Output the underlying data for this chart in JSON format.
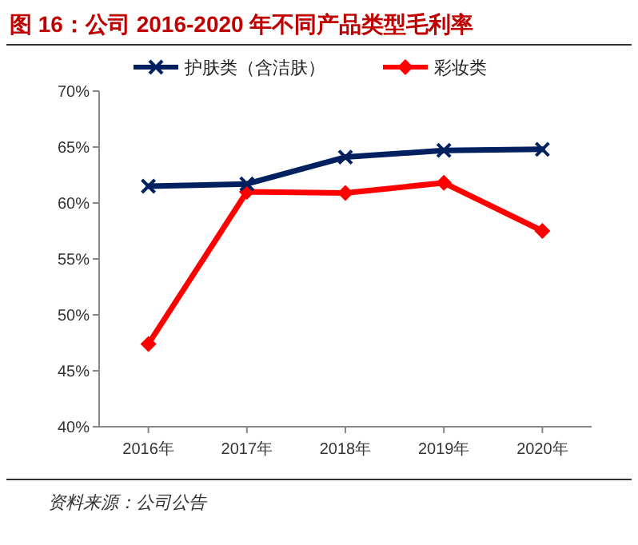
{
  "chart_data": {
    "type": "line",
    "title": "图 16：公司 2016-2020 年不同产品类型毛利率",
    "categories": [
      "2016年",
      "2017年",
      "2018年",
      "2019年",
      "2020年"
    ],
    "series": [
      {
        "name": "护肤类（含洁肤）",
        "color": "#002060",
        "values": [
          61.5,
          61.7,
          64.1,
          64.7,
          64.8
        ],
        "marker": "cross"
      },
      {
        "name": "彩妆类",
        "color": "#ff0000",
        "values": [
          47.4,
          61.0,
          60.9,
          61.8,
          57.5
        ],
        "marker": "diamond"
      }
    ],
    "ylim": [
      40,
      70
    ],
    "yticks": [
      {
        "value": 40,
        "label": "40%"
      },
      {
        "value": 45,
        "label": "45%"
      },
      {
        "value": 50,
        "label": "50%"
      },
      {
        "value": 55,
        "label": "55%"
      },
      {
        "value": 60,
        "label": "60%"
      },
      {
        "value": 65,
        "label": "65%"
      },
      {
        "value": 70,
        "label": "70%"
      }
    ],
    "legend": "top",
    "annotations": [
      "资料来源：公司公告"
    ]
  }
}
